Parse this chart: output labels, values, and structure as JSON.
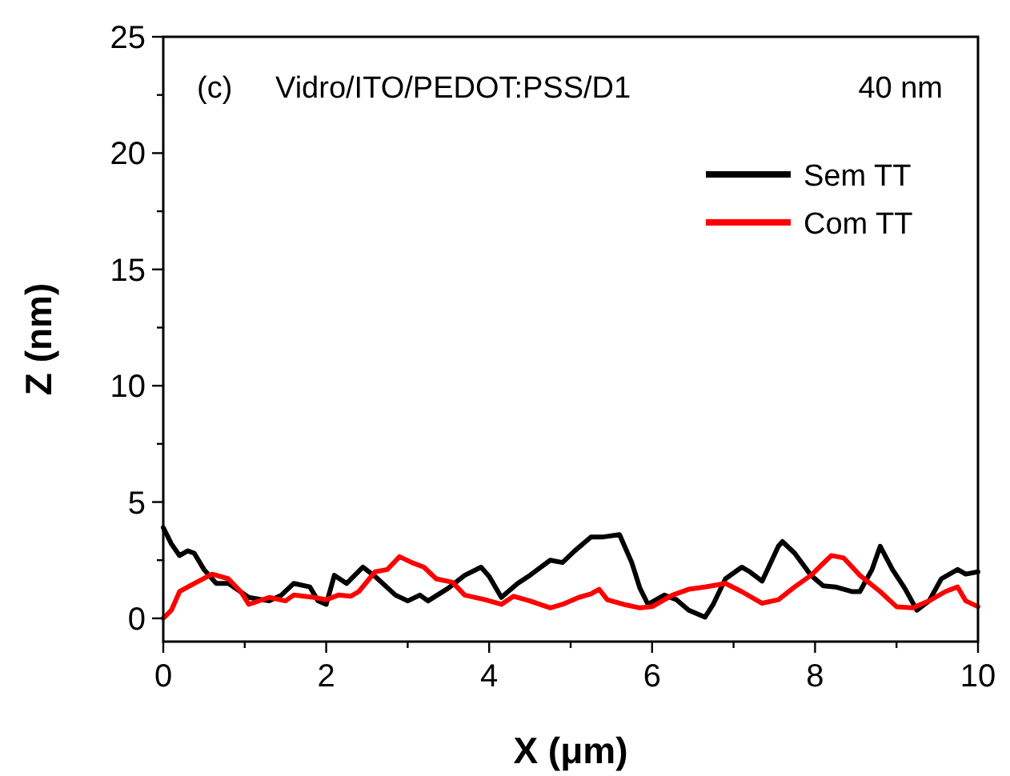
{
  "chart_data": {
    "type": "line",
    "xlabel": "X (μm)",
    "ylabel": "Z (nm)",
    "annotations": [
      "(c)",
      "Vidro/ITO/PEDOT:PSS/D1",
      "40 nm"
    ],
    "xlim": [
      0,
      10
    ],
    "ylim": [
      -1,
      25
    ],
    "xticks": [
      0,
      {
        "value": 1,
        "label": null
      },
      2,
      {
        "value": 3,
        "label": null
      },
      4,
      {
        "value": 5,
        "label": null
      },
      6,
      {
        "value": 7,
        "label": null
      },
      8,
      {
        "value": 9,
        "label": null
      },
      10
    ],
    "yticks": [
      0,
      {
        "value": 2.5,
        "label": null
      },
      5,
      {
        "value": 7.5,
        "label": null
      },
      10,
      {
        "value": 12.5,
        "label": null
      },
      15,
      {
        "value": 17.5,
        "label": null
      },
      20,
      {
        "value": 22.5,
        "label": null
      },
      25
    ],
    "grid": false,
    "legend": "top right",
    "line_style": "solid",
    "marker": "none",
    "series": [
      {
        "name": "Sem TT",
        "color": "#000000",
        "x": [
          0,
          0.1,
          0.2,
          0.3,
          0.38,
          0.5,
          0.65,
          0.8,
          1.05,
          1.3,
          1.45,
          1.6,
          1.8,
          1.9,
          2.0,
          2.1,
          2.25,
          2.45,
          2.6,
          2.85,
          3.0,
          3.15,
          3.25,
          3.5,
          3.7,
          3.9,
          4.0,
          4.15,
          4.35,
          4.5,
          4.75,
          4.9,
          5.05,
          5.25,
          5.4,
          5.6,
          5.75,
          5.85,
          5.95,
          6.15,
          6.3,
          6.45,
          6.65,
          6.75,
          6.9,
          7.1,
          7.2,
          7.35,
          7.55,
          7.6,
          7.75,
          7.95,
          8.1,
          8.25,
          8.45,
          8.55,
          8.7,
          8.8,
          8.95,
          9.1,
          9.25,
          9.4,
          9.55,
          9.75,
          9.85,
          10
        ],
        "values": [
          3.9,
          3.2,
          2.7,
          2.9,
          2.8,
          2.1,
          1.5,
          1.5,
          0.9,
          0.75,
          1.0,
          1.5,
          1.35,
          0.75,
          0.6,
          1.85,
          1.5,
          2.2,
          1.8,
          1.0,
          0.75,
          1.0,
          0.75,
          1.3,
          1.85,
          2.2,
          1.8,
          0.9,
          1.5,
          1.85,
          2.5,
          2.4,
          2.9,
          3.5,
          3.5,
          3.6,
          2.4,
          1.3,
          0.6,
          1.0,
          0.8,
          0.35,
          0.05,
          0.6,
          1.7,
          2.2,
          2.0,
          1.6,
          3.1,
          3.3,
          2.8,
          1.85,
          1.4,
          1.35,
          1.15,
          1.15,
          2.1,
          3.1,
          2.1,
          1.3,
          0.35,
          0.75,
          1.7,
          2.1,
          1.9,
          2.0
        ]
      },
      {
        "name": "Com TT",
        "color": "#ff0000",
        "x": [
          0,
          0.1,
          0.2,
          0.38,
          0.6,
          0.8,
          0.95,
          1.05,
          1.3,
          1.5,
          1.6,
          1.85,
          2.0,
          2.15,
          2.3,
          2.4,
          2.6,
          2.75,
          2.9,
          3.05,
          3.2,
          3.35,
          3.55,
          3.7,
          3.95,
          4.15,
          4.3,
          4.5,
          4.75,
          4.9,
          5.1,
          5.25,
          5.35,
          5.45,
          5.65,
          5.85,
          6.0,
          6.25,
          6.45,
          6.65,
          6.9,
          7.1,
          7.35,
          7.55,
          7.75,
          7.95,
          8.2,
          8.35,
          8.55,
          8.8,
          9.0,
          9.2,
          9.4,
          9.6,
          9.75,
          9.85,
          10
        ],
        "values": [
          0,
          0.35,
          1.15,
          1.5,
          1.9,
          1.7,
          1.15,
          0.6,
          0.9,
          0.75,
          1.0,
          0.9,
          0.8,
          1.0,
          0.95,
          1.15,
          2.0,
          2.1,
          2.65,
          2.4,
          2.2,
          1.7,
          1.55,
          1.0,
          0.8,
          0.6,
          0.95,
          0.75,
          0.45,
          0.6,
          0.9,
          1.05,
          1.25,
          0.8,
          0.6,
          0.45,
          0.5,
          1.0,
          1.25,
          1.35,
          1.5,
          1.15,
          0.65,
          0.8,
          1.35,
          1.85,
          2.7,
          2.6,
          1.85,
          1.15,
          0.5,
          0.45,
          0.75,
          1.15,
          1.35,
          0.75,
          0.5
        ]
      }
    ]
  }
}
